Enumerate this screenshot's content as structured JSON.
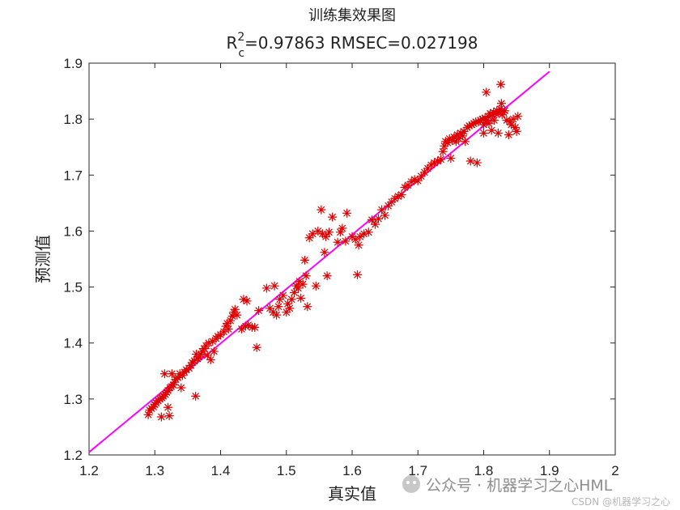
{
  "chart_data": {
    "type": "scatter",
    "title": "训练集效果图",
    "subtitle_parts": {
      "r": "R",
      "sup": "2",
      "sub": "c",
      "rest": "=0.97863  RMSEC=0.027198"
    },
    "xlabel": "真实值",
    "ylabel": "预测值",
    "xlim": [
      1.2,
      2.0
    ],
    "ylim": [
      1.2,
      1.9
    ],
    "xticks": [
      "1.2",
      "1.3",
      "1.4",
      "1.5",
      "1.6",
      "1.7",
      "1.8",
      "1.9",
      "2"
    ],
    "yticks": [
      "1.2",
      "1.3",
      "1.4",
      "1.5",
      "1.6",
      "1.7",
      "1.8",
      "1.9"
    ],
    "grid": false,
    "line": {
      "x": [
        1.2,
        1.9
      ],
      "y": [
        1.205,
        1.885
      ],
      "color": "#ff00ff"
    },
    "marker_color": "#e00000",
    "points": [
      [
        1.29,
        1.272
      ],
      [
        1.292,
        1.28
      ],
      [
        1.295,
        1.283
      ],
      [
        1.298,
        1.286
      ],
      [
        1.3,
        1.29
      ],
      [
        1.302,
        1.293
      ],
      [
        1.305,
        1.297
      ],
      [
        1.308,
        1.3
      ],
      [
        1.31,
        1.268
      ],
      [
        1.311,
        1.302
      ],
      [
        1.313,
        1.305
      ],
      [
        1.315,
        1.345
      ],
      [
        1.316,
        1.308
      ],
      [
        1.318,
        1.312
      ],
      [
        1.32,
        1.285
      ],
      [
        1.32,
        1.315
      ],
      [
        1.322,
        1.27
      ],
      [
        1.323,
        1.32
      ],
      [
        1.325,
        1.322
      ],
      [
        1.326,
        1.345
      ],
      [
        1.328,
        1.325
      ],
      [
        1.33,
        1.33
      ],
      [
        1.332,
        1.335
      ],
      [
        1.335,
        1.338
      ],
      [
        1.338,
        1.345
      ],
      [
        1.34,
        1.32
      ],
      [
        1.342,
        1.342
      ],
      [
        1.345,
        1.348
      ],
      [
        1.348,
        1.352
      ],
      [
        1.352,
        1.355
      ],
      [
        1.355,
        1.36
      ],
      [
        1.357,
        1.365
      ],
      [
        1.36,
        1.368
      ],
      [
        1.362,
        1.305
      ],
      [
        1.363,
        1.38
      ],
      [
        1.365,
        1.372
      ],
      [
        1.367,
        1.375
      ],
      [
        1.37,
        1.38
      ],
      [
        1.372,
        1.385
      ],
      [
        1.375,
        1.39
      ],
      [
        1.378,
        1.395
      ],
      [
        1.38,
        1.378
      ],
      [
        1.382,
        1.4
      ],
      [
        1.385,
        1.37
      ],
      [
        1.388,
        1.403
      ],
      [
        1.39,
        1.385
      ],
      [
        1.393,
        1.408
      ],
      [
        1.396,
        1.412
      ],
      [
        1.4,
        1.415
      ],
      [
        1.405,
        1.42
      ],
      [
        1.408,
        1.43
      ],
      [
        1.41,
        1.435
      ],
      [
        1.412,
        1.425
      ],
      [
        1.415,
        1.44
      ],
      [
        1.418,
        1.448
      ],
      [
        1.42,
        1.455
      ],
      [
        1.422,
        1.46
      ],
      [
        1.425,
        1.45
      ],
      [
        1.432,
        1.425
      ],
      [
        1.435,
        1.478
      ],
      [
        1.438,
        1.43
      ],
      [
        1.44,
        1.475
      ],
      [
        1.442,
        1.432
      ],
      [
        1.448,
        1.428
      ],
      [
        1.452,
        1.428
      ],
      [
        1.455,
        1.392
      ],
      [
        1.458,
        1.458
      ],
      [
        1.47,
        1.498
      ],
      [
        1.475,
        1.462
      ],
      [
        1.48,
        1.455
      ],
      [
        1.482,
        1.502
      ],
      [
        1.485,
        1.45
      ],
      [
        1.488,
        1.465
      ],
      [
        1.49,
        1.478
      ],
      [
        1.495,
        1.485
      ],
      [
        1.5,
        1.455
      ],
      [
        1.502,
        1.47
      ],
      [
        1.505,
        1.462
      ],
      [
        1.508,
        1.478
      ],
      [
        1.512,
        1.49
      ],
      [
        1.515,
        1.502
      ],
      [
        1.518,
        1.498
      ],
      [
        1.52,
        1.51
      ],
      [
        1.522,
        1.48
      ],
      [
        1.525,
        1.505
      ],
      [
        1.528,
        1.548
      ],
      [
        1.53,
        1.52
      ],
      [
        1.532,
        1.465
      ],
      [
        1.535,
        1.588
      ],
      [
        1.54,
        1.595
      ],
      [
        1.545,
        1.502
      ],
      [
        1.548,
        1.6
      ],
      [
        1.553,
        1.638
      ],
      [
        1.555,
        1.595
      ],
      [
        1.558,
        1.562
      ],
      [
        1.56,
        1.59
      ],
      [
        1.562,
        1.52
      ],
      [
        1.565,
        1.598
      ],
      [
        1.57,
        1.625
      ],
      [
        1.578,
        1.58
      ],
      [
        1.582,
        1.598
      ],
      [
        1.585,
        1.605
      ],
      [
        1.59,
        1.582
      ],
      [
        1.592,
        1.632
      ],
      [
        1.6,
        1.59
      ],
      [
        1.605,
        1.585
      ],
      [
        1.608,
        1.522
      ],
      [
        1.61,
        1.575
      ],
      [
        1.612,
        1.59
      ],
      [
        1.618,
        1.595
      ],
      [
        1.625,
        1.598
      ],
      [
        1.63,
        1.62
      ],
      [
        1.635,
        1.612
      ],
      [
        1.64,
        1.622
      ],
      [
        1.645,
        1.638
      ],
      [
        1.65,
        1.628
      ],
      [
        1.655,
        1.645
      ],
      [
        1.66,
        1.652
      ],
      [
        1.665,
        1.658
      ],
      [
        1.67,
        1.662
      ],
      [
        1.675,
        1.665
      ],
      [
        1.68,
        1.678
      ],
      [
        1.685,
        1.682
      ],
      [
        1.69,
        1.688
      ],
      [
        1.695,
        1.692
      ],
      [
        1.7,
        1.69
      ],
      [
        1.705,
        1.698
      ],
      [
        1.71,
        1.705
      ],
      [
        1.715,
        1.712
      ],
      [
        1.72,
        1.718
      ],
      [
        1.725,
        1.722
      ],
      [
        1.73,
        1.725
      ],
      [
        1.735,
        1.728
      ],
      [
        1.738,
        1.742
      ],
      [
        1.74,
        1.752
      ],
      [
        1.742,
        1.76
      ],
      [
        1.745,
        1.758
      ],
      [
        1.748,
        1.765
      ],
      [
        1.75,
        1.73
      ],
      [
        1.752,
        1.762
      ],
      [
        1.755,
        1.768
      ],
      [
        1.758,
        1.76
      ],
      [
        1.76,
        1.772
      ],
      [
        1.762,
        1.765
      ],
      [
        1.765,
        1.775
      ],
      [
        1.768,
        1.77
      ],
      [
        1.77,
        1.778
      ],
      [
        1.772,
        1.76
      ],
      [
        1.775,
        1.785
      ],
      [
        1.778,
        1.788
      ],
      [
        1.78,
        1.725
      ],
      [
        1.782,
        1.79
      ],
      [
        1.785,
        1.792
      ],
      [
        1.788,
        1.795
      ],
      [
        1.79,
        1.722
      ],
      [
        1.792,
        1.795
      ],
      [
        1.795,
        1.798
      ],
      [
        1.798,
        1.8
      ],
      [
        1.8,
        1.775
      ],
      [
        1.8,
        1.79
      ],
      [
        1.802,
        1.802
      ],
      [
        1.804,
        1.848
      ],
      [
        1.805,
        1.798
      ],
      [
        1.807,
        1.805
      ],
      [
        1.808,
        1.792
      ],
      [
        1.81,
        1.81
      ],
      [
        1.812,
        1.78
      ],
      [
        1.813,
        1.808
      ],
      [
        1.815,
        1.812
      ],
      [
        1.816,
        1.798
      ],
      [
        1.818,
        1.81
      ],
      [
        1.82,
        1.815
      ],
      [
        1.822,
        1.775
      ],
      [
        1.823,
        1.812
      ],
      [
        1.825,
        1.818
      ],
      [
        1.826,
        1.862
      ],
      [
        1.827,
        1.828
      ],
      [
        1.828,
        1.808
      ],
      [
        1.83,
        1.812
      ],
      [
        1.832,
        1.815
      ],
      [
        1.835,
        1.798
      ],
      [
        1.838,
        1.772
      ],
      [
        1.84,
        1.795
      ],
      [
        1.842,
        1.79
      ],
      [
        1.845,
        1.8
      ],
      [
        1.848,
        1.785
      ],
      [
        1.85,
        1.778
      ],
      [
        1.852,
        1.805
      ]
    ]
  },
  "watermark": {
    "main": "公众号 · 机器学习之心HML",
    "sub": "CSDN @机器学习之心"
  }
}
